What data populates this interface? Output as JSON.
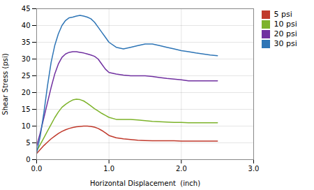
{
  "chart_data": {
    "type": "line",
    "xlabel": "Horizontal Displacement  (inch)",
    "ylabel": "Shear Stress (psi)",
    "xlim": [
      0,
      3
    ],
    "ylim": [
      0,
      45
    ],
    "xticks": [
      0,
      1,
      2,
      3
    ],
    "yticks": [
      0,
      5,
      10,
      15,
      20,
      25,
      30,
      35,
      40,
      45
    ],
    "grid": true,
    "legend": "right",
    "x": [
      0.0,
      0.05,
      0.1,
      0.15,
      0.2,
      0.25,
      0.3,
      0.35,
      0.4,
      0.45,
      0.5,
      0.55,
      0.6,
      0.65,
      0.7,
      0.75,
      0.8,
      0.85,
      0.9,
      0.95,
      1.0,
      1.1,
      1.2,
      1.3,
      1.4,
      1.5,
      1.6,
      1.7,
      1.8,
      1.9,
      2.0,
      2.1,
      2.2,
      2.3,
      2.4,
      2.5
    ],
    "series": [
      {
        "name": "5 psi",
        "color": "#c0392b",
        "values": [
          1.8,
          3.0,
          4.2,
          5.2,
          6.2,
          7.0,
          7.8,
          8.4,
          8.9,
          9.3,
          9.6,
          9.8,
          9.9,
          10.0,
          10.0,
          9.9,
          9.7,
          9.3,
          8.7,
          8.0,
          7.2,
          6.5,
          6.2,
          6.0,
          5.8,
          5.7,
          5.6,
          5.6,
          5.6,
          5.6,
          5.5,
          5.5,
          5.5,
          5.5,
          5.5,
          5.5
        ]
      },
      {
        "name": "10 psi",
        "color": "#7db32a",
        "values": [
          2.5,
          4.5,
          6.5,
          8.5,
          10.5,
          12.5,
          14.2,
          15.6,
          16.5,
          17.2,
          17.8,
          18.0,
          17.9,
          17.5,
          16.8,
          16.0,
          15.2,
          14.5,
          13.8,
          13.2,
          12.6,
          12.0,
          12.0,
          12.0,
          11.8,
          11.6,
          11.4,
          11.3,
          11.2,
          11.1,
          11.1,
          11.0,
          11.0,
          11.0,
          11.0,
          11.0
        ]
      },
      {
        "name": "20 psi",
        "color": "#7030a0",
        "values": [
          4.0,
          8.0,
          12.5,
          17.0,
          21.5,
          25.5,
          28.5,
          30.5,
          31.5,
          32.0,
          32.2,
          32.2,
          32.0,
          31.8,
          31.5,
          31.2,
          30.8,
          30.0,
          28.5,
          27.0,
          26.0,
          25.5,
          25.2,
          25.0,
          25.0,
          25.0,
          24.8,
          24.5,
          24.2,
          24.0,
          23.8,
          23.5,
          23.5,
          23.5,
          23.5,
          23.5
        ]
      },
      {
        "name": "30 psi",
        "color": "#2e75b6",
        "values": [
          2.0,
          7.0,
          14.0,
          22.0,
          29.0,
          34.0,
          37.5,
          40.0,
          41.5,
          42.3,
          42.5,
          42.8,
          43.0,
          42.8,
          42.5,
          42.0,
          41.0,
          39.5,
          38.0,
          36.5,
          35.0,
          33.5,
          33.0,
          33.5,
          34.0,
          34.5,
          34.5,
          34.0,
          33.5,
          33.0,
          32.5,
          32.2,
          31.8,
          31.5,
          31.2,
          31.0
        ]
      }
    ]
  }
}
